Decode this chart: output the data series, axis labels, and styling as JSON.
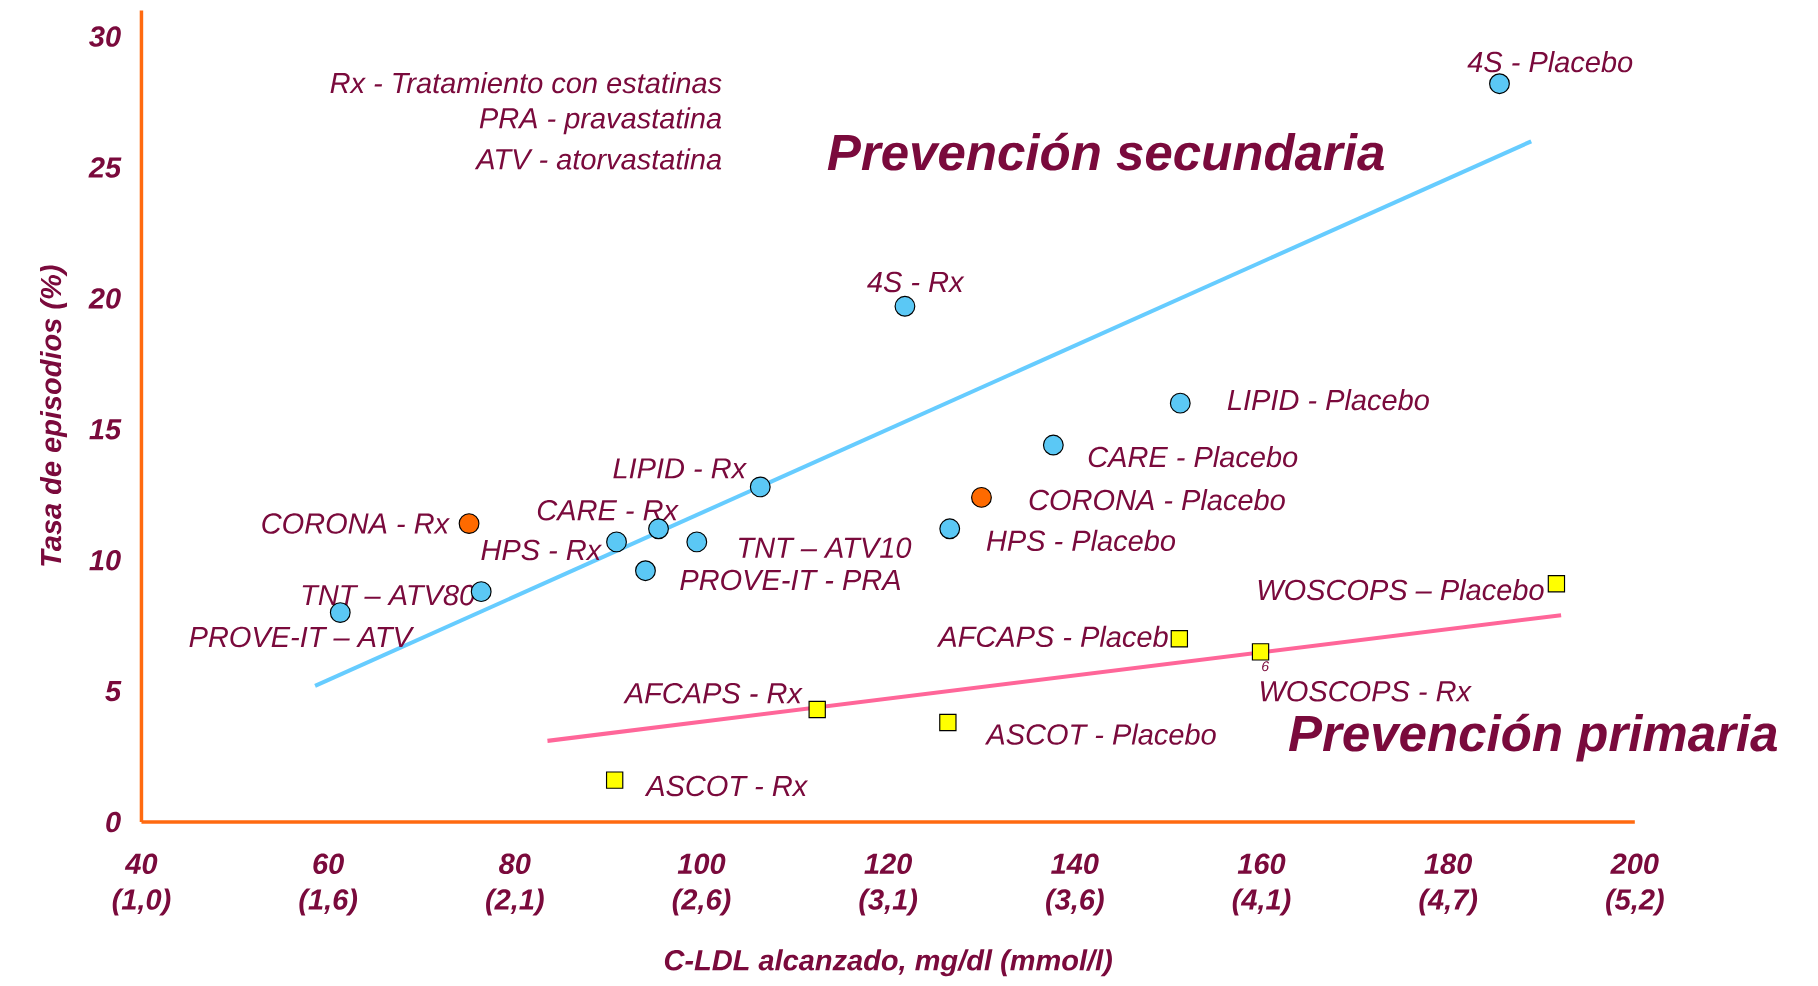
{
  "chart_data": {
    "type": "scatter",
    "xlabel": "C-LDL alcanzado, mg/dl (mmol/l)",
    "ylabel": "Tasa de episodios (%)",
    "xlim": [
      40,
      200
    ],
    "ylim": [
      0,
      31
    ],
    "xticks": [
      40,
      60,
      80,
      100,
      120,
      140,
      160,
      180,
      200
    ],
    "yticks": [
      0,
      5,
      10,
      15,
      20,
      25,
      30
    ],
    "grid": false,
    "series": [
      {
        "marker": "circle",
        "color": "#5bc8f5",
        "x": [
          185.5,
          121.8,
          151.3,
          137.7,
          106.3,
          126.6,
          95.4,
          90.9,
          99.5,
          94.0,
          76.4,
          61.3
        ],
        "values": [
          28.2,
          19.7,
          16.0,
          14.4,
          12.8,
          11.2,
          11.2,
          10.7,
          10.7,
          9.6,
          8.8,
          8.0
        ]
      },
      {
        "marker": "circle",
        "color": "#ff6a00",
        "x": [
          75.1,
          130.0
        ],
        "values": [
          11.4,
          12.4
        ]
      },
      {
        "marker": "square",
        "color": "#ffff00",
        "x": [
          191.6,
          151.2,
          159.9,
          112.4,
          126.4,
          90.7
        ],
        "values": [
          9.1,
          7.0,
          6.5,
          4.3,
          3.8,
          1.6
        ]
      },
      {
        "type": "line",
        "marker": "none",
        "color": "#66ccff",
        "x": [
          58.6,
          188.9
        ],
        "values": [
          5.2,
          26.0
        ]
      },
      {
        "type": "line",
        "marker": "none",
        "color": "#ff6699",
        "x": [
          83.5,
          192.1
        ],
        "values": [
          3.1,
          7.9
        ]
      }
    ],
    "annotations": [
      "Rx - Tratamiento con estatinas",
      "PRA - pravastatina",
      "ATV - atorvastatina",
      "Prevención secundaria",
      "Prevención primaria",
      {
        "text": "4S - Placebo",
        "x": 185.5,
        "y": 28.2
      },
      {
        "text": "4S - Rx",
        "x": 121.8,
        "y": 19.7
      },
      {
        "text": "LIPID - Placebo",
        "x": 151.3,
        "y": 16.0
      },
      {
        "text": "CARE - Placebo",
        "x": 137.7,
        "y": 14.4
      },
      {
        "text": "LIPID - Rx",
        "x": 106.3,
        "y": 12.8
      },
      {
        "text": "CORONA - Placebo",
        "x": 130.0,
        "y": 12.4
      },
      {
        "text": "CARE - Rx",
        "x": 95.4,
        "y": 11.2
      },
      {
        "text": "CORONA - Rx",
        "x": 75.1,
        "y": 11.4
      },
      {
        "text": "HPS - Placebo",
        "x": 126.6,
        "y": 11.2
      },
      {
        "text": "HPS - Rx",
        "x": 90.9,
        "y": 10.7
      },
      {
        "text": "TNT – ATV10",
        "x": 99.5,
        "y": 10.7
      },
      {
        "text": "PROVE-IT - PRA",
        "x": 94.0,
        "y": 9.6
      },
      {
        "text": "TNT – ATV80",
        "x": 76.4,
        "y": 8.8
      },
      {
        "text": "PROVE-IT – ATV",
        "x": 61.3,
        "y": 8.0
      },
      {
        "text": "WOSCOPS – Placebo",
        "x": 191.6,
        "y": 9.1
      },
      {
        "text": "AFCAPS - Placeb",
        "x": 151.2,
        "y": 7.0
      },
      {
        "text": "WOSCOPS - Rx",
        "x": 159.9,
        "y": 6.5
      },
      {
        "text": "AFCAPS - Rx",
        "x": 112.4,
        "y": 4.3
      },
      {
        "text": "ASCOT - Placebo",
        "x": 126.4,
        "y": 3.8
      },
      {
        "text": "ASCOT - Rx",
        "x": 90.7,
        "y": 1.6
      },
      {
        "text": "6",
        "x": 159.9,
        "y": 6.5
      },
      "(1,0)",
      "(1,6)",
      "(2,1)",
      "(2,6)",
      "(3,1)",
      "(3,6)",
      "(4,1)",
      "(4,7)",
      "(5,2)"
    ]
  }
}
